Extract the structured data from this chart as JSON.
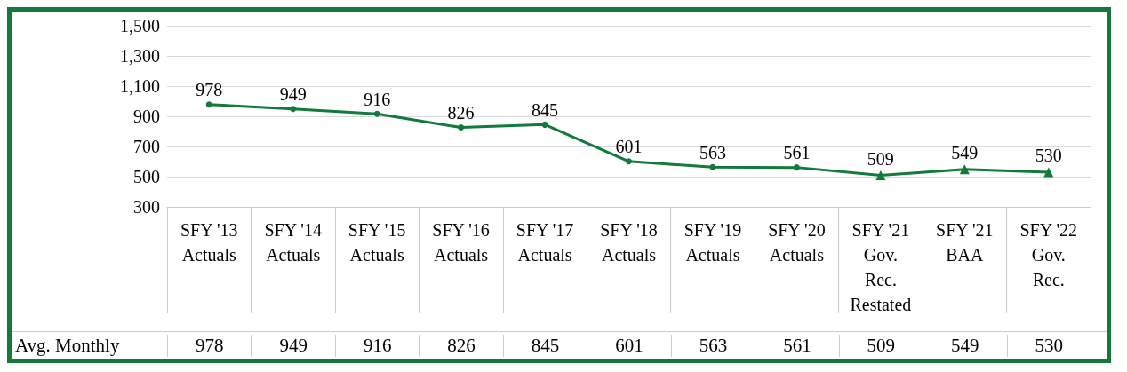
{
  "chart_data": {
    "type": "line",
    "categories": [
      "SFY '13\nActuals",
      "SFY '14\nActuals",
      "SFY '15\nActuals",
      "SFY '16\nActuals",
      "SFY '17\nActuals",
      "SFY '18\nActuals",
      "SFY '19\nActuals",
      "SFY '20\nActuals",
      "SFY '21\nGov.\nRec.\nRestated",
      "SFY '21\nBAA",
      "SFY '22\nGov.\nRec."
    ],
    "series": [
      {
        "name": "Avg. Monthly",
        "color": "#127a3a",
        "values": [
          978,
          949,
          916,
          826,
          845,
          601,
          563,
          561,
          509,
          549,
          530
        ],
        "marker": [
          "circle",
          "circle",
          "circle",
          "circle",
          "circle",
          "circle",
          "circle",
          "circle",
          "triangle",
          "triangle",
          "triangle"
        ]
      }
    ],
    "ylim": [
      300,
      1500
    ],
    "yticks": [
      300,
      500,
      700,
      900,
      {
        "value": 1100,
        "label": "1,100"
      },
      {
        "value": 1300,
        "label": "1,300"
      },
      {
        "value": 1500,
        "label": "1,500"
      }
    ],
    "annotations": [
      "978",
      "949",
      "916",
      "826",
      "845",
      "601",
      "563",
      "561",
      "509",
      "549",
      "530"
    ],
    "grid": "y",
    "legend": false,
    "data_labels": true,
    "line_style": "solid"
  }
}
